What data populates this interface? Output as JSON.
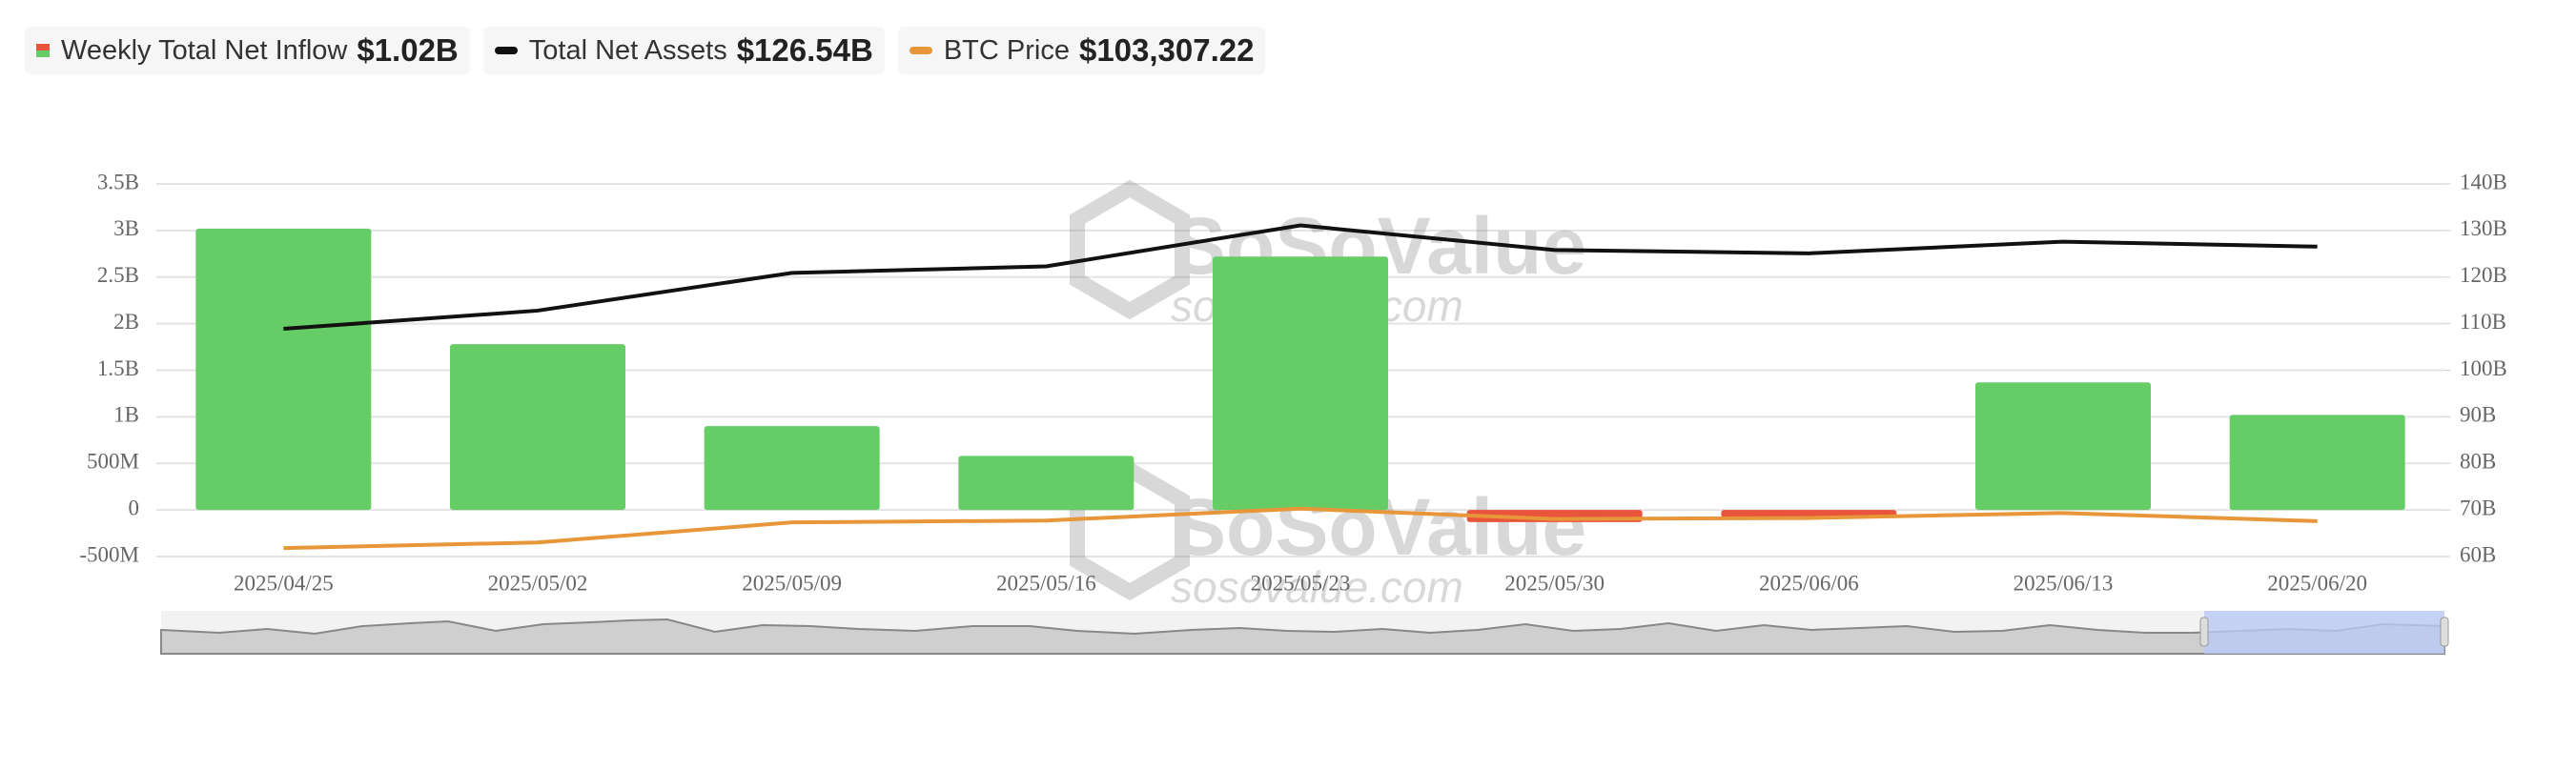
{
  "watermark": {
    "brand": "SoSoValue",
    "url": "sosovalue.com"
  },
  "chart_data": {
    "type": "combo",
    "categories": [
      "2025/04/25",
      "2025/05/02",
      "2025/05/09",
      "2025/05/16",
      "2025/05/23",
      "2025/05/30",
      "2025/06/06",
      "2025/06/13",
      "2025/06/20"
    ],
    "series": [
      {
        "name": "Weekly Total Net Inflow",
        "legend_value": "$1.02B",
        "type": "bar",
        "color": "#66cc66",
        "negative_color": "#e8553a",
        "values": [
          3.02,
          1.78,
          0.9,
          0.58,
          2.72,
          -0.13,
          -0.08,
          1.37,
          1.02
        ]
      },
      {
        "name": "Total Net Assets",
        "legend_value": "$126.54B",
        "type": "line",
        "axis": "y2",
        "color": "#111111",
        "values": [
          108.9,
          112.8,
          120.9,
          122.3,
          131.1,
          125.8,
          125.1,
          127.6,
          126.54
        ]
      },
      {
        "name": "BTC Price",
        "legend_value": "$103,307.22",
        "type": "line",
        "axis": "y3",
        "color": "#e8963a",
        "values": [
          94700,
          96500,
          102900,
          103500,
          107300,
          104000,
          104300,
          105900,
          103307.22
        ]
      }
    ],
    "ylim": [
      -0.5,
      3.5
    ],
    "yticks": [
      {
        "value": -0.5,
        "label": "-500M"
      },
      0,
      {
        "value": 0.5,
        "label": "500M"
      },
      {
        "value": 1,
        "label": "1B"
      },
      {
        "value": 1.5,
        "label": "1.5B"
      },
      {
        "value": 2,
        "label": "2B"
      },
      {
        "value": 2.5,
        "label": "2.5B"
      },
      {
        "value": 3,
        "label": "3B"
      },
      {
        "value": 3.5,
        "label": "3.5B"
      }
    ],
    "y2lim": [
      60,
      140
    ],
    "y2ticks": [
      {
        "value": 60,
        "label": "60B"
      },
      {
        "value": 70,
        "label": "70B"
      },
      {
        "value": 80,
        "label": "80B"
      },
      {
        "value": 90,
        "label": "90B"
      },
      {
        "value": 100,
        "label": "100B"
      },
      {
        "value": 110,
        "label": "110B"
      },
      {
        "value": 120,
        "label": "120B"
      },
      {
        "value": 130,
        "label": "130B"
      },
      {
        "value": 140,
        "label": "140B"
      }
    ],
    "y3lim": [
      92000,
      211000
    ],
    "grid": true
  }
}
